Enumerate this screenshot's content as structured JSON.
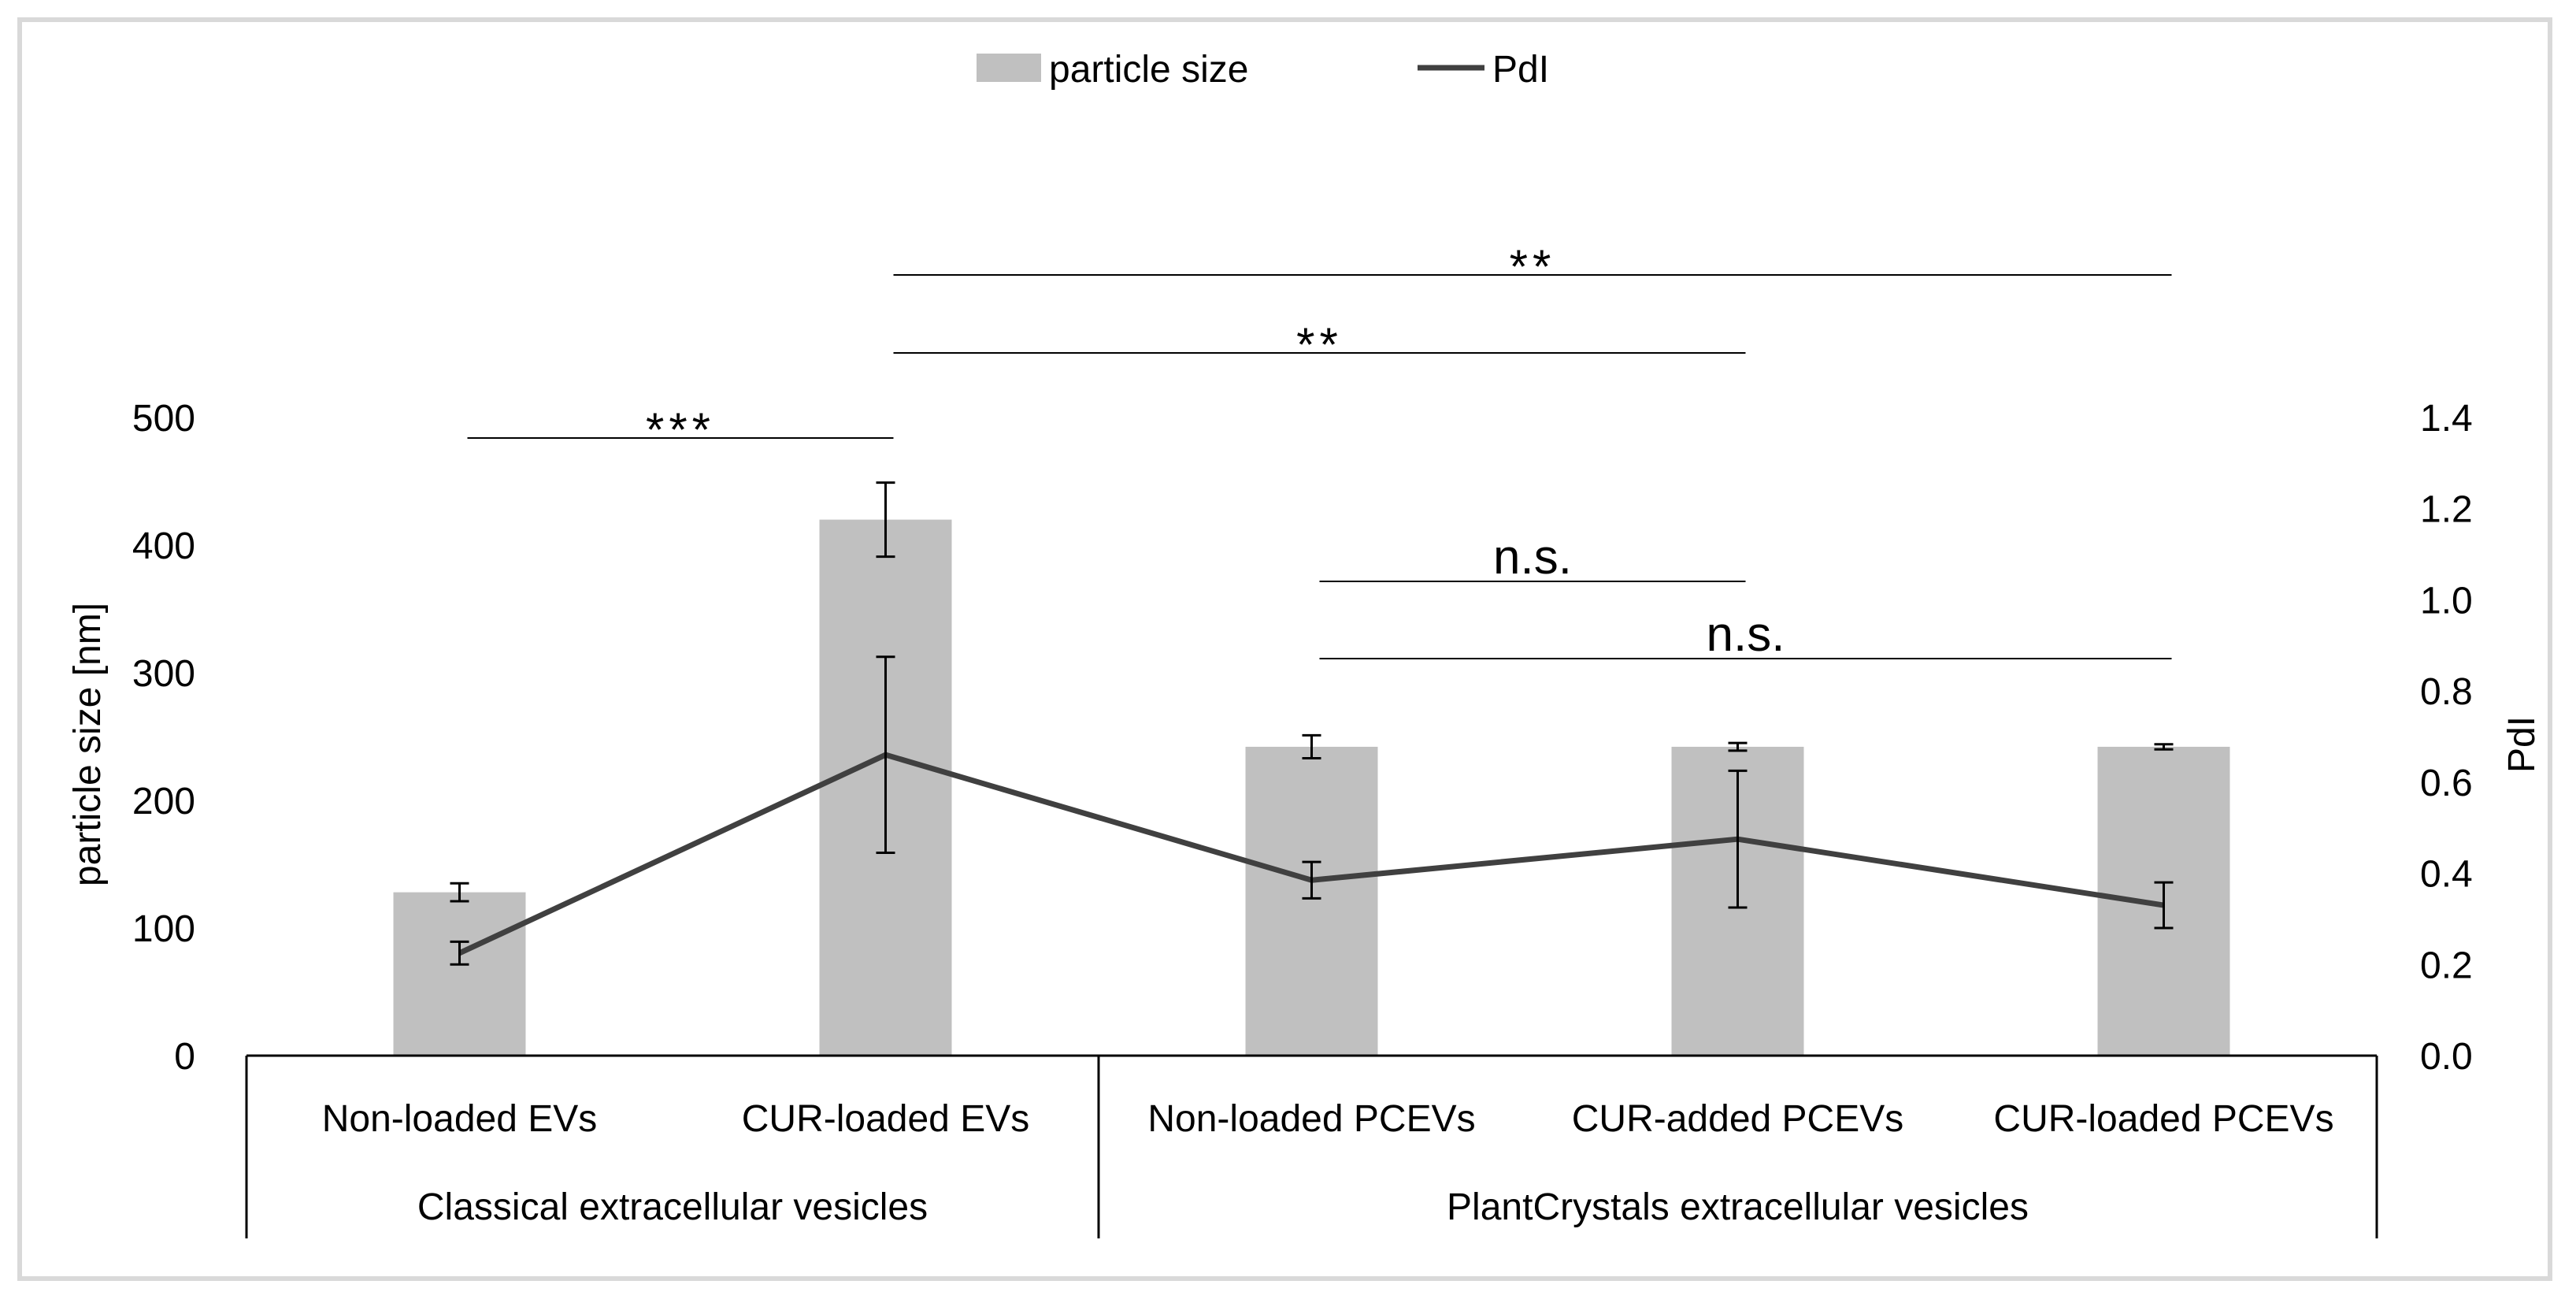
{
  "chart_data": {
    "type": "bar",
    "legend": {
      "placement": "top-center",
      "entries": [
        {
          "label": "particle size",
          "kind": "bar"
        },
        {
          "label": "PdI",
          "kind": "line"
        }
      ]
    },
    "categories": [
      "Non-loaded EVs",
      "CUR-loaded EVs",
      "Non-loaded PCEVs",
      "CUR-added PCEVs",
      "CUR-loaded PCEVs"
    ],
    "groups": [
      {
        "label": "Classical extracellular vesicles",
        "categories": [
          0,
          1
        ]
      },
      {
        "label": "PlantCrystals extracellular vesicles",
        "categories": [
          2,
          3,
          4
        ]
      }
    ],
    "ylabel": "particle size [nm]",
    "y2label": "PdI",
    "ylim": [
      0,
      500
    ],
    "y2lim": [
      0,
      1.4
    ],
    "yticks": [
      "0",
      "100",
      "200",
      "300",
      "400",
      "500"
    ],
    "y2ticks": [
      "0.0",
      "0.2",
      "0.4",
      "0.6",
      "0.8",
      "1.0",
      "1.2",
      "1.4"
    ],
    "grid": false,
    "series": [
      {
        "name": "particle size",
        "type": "bar",
        "axis": "left",
        "color": "#c0c0c0",
        "values": [
          128,
          420,
          242,
          242,
          242
        ],
        "errors": [
          7,
          29,
          9,
          3,
          2
        ]
      },
      {
        "name": "PdI",
        "type": "line",
        "axis": "right",
        "color": "#404040",
        "values": [
          0.225,
          0.66,
          0.385,
          0.475,
          0.33
        ],
        "errors": [
          0.025,
          0.215,
          0.04,
          0.15,
          0.05
        ]
      }
    ],
    "significance": [
      {
        "from": 0,
        "to": 1,
        "label": "***"
      },
      {
        "from": 1,
        "to": 3,
        "label": "**"
      },
      {
        "from": 1,
        "to": 4,
        "label": "**"
      },
      {
        "from": 2,
        "to": 3,
        "label": "n.s."
      },
      {
        "from": 2,
        "to": 4,
        "label": "n.s."
      }
    ]
  }
}
